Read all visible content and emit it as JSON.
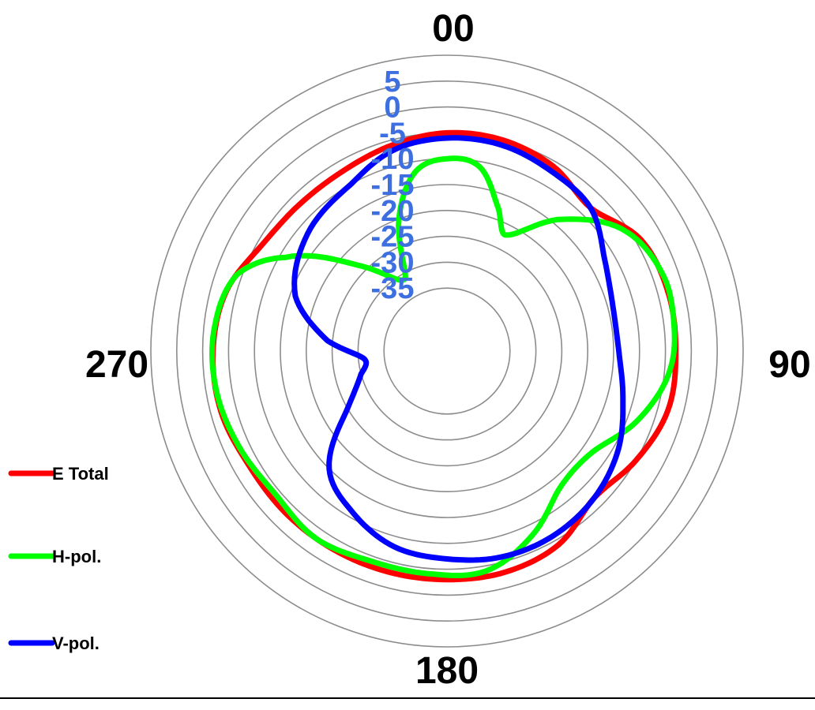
{
  "chart_data": {
    "type": "polar-line",
    "angle_labels": [
      {
        "deg": 0,
        "text": "00"
      },
      {
        "deg": 90,
        "text": "90"
      },
      {
        "deg": 180,
        "text": "180"
      },
      {
        "deg": 270,
        "text": "270"
      }
    ],
    "r_ticks": [
      "5",
      "0",
      "-5",
      "-10",
      "-15",
      "-20",
      "-25",
      "-30",
      "-35"
    ],
    "r_range": [
      -40,
      10
    ],
    "ring_values": [
      -35,
      -30,
      -25,
      -20,
      -15,
      -10,
      -5,
      0,
      5,
      10
    ],
    "tick_color": "#3d6fe0",
    "grid": true,
    "legend_position": "left",
    "series": [
      {
        "name": "E Total",
        "color": "#ff0000",
        "points": [
          [
            0,
            -5
          ],
          [
            15,
            -5
          ],
          [
            30,
            -6
          ],
          [
            45,
            -8
          ],
          [
            60,
            -4
          ],
          [
            75,
            -3
          ],
          [
            90,
            -3
          ],
          [
            105,
            -3
          ],
          [
            120,
            -5
          ],
          [
            135,
            -7
          ],
          [
            150,
            -4
          ],
          [
            165,
            -3
          ],
          [
            180,
            -3
          ],
          [
            195,
            -3
          ],
          [
            210,
            -3
          ],
          [
            225,
            -3
          ],
          [
            240,
            -3
          ],
          [
            255,
            -2
          ],
          [
            270,
            -2
          ],
          [
            285,
            -3
          ],
          [
            300,
            -6
          ],
          [
            315,
            -7
          ],
          [
            330,
            -7
          ],
          [
            345,
            -6
          ],
          [
            360,
            -5
          ]
        ]
      },
      {
        "name": "H-pol.",
        "color": "#00ff00",
        "points": [
          [
            0,
            -10
          ],
          [
            10,
            -11
          ],
          [
            20,
            -18
          ],
          [
            27,
            -22
          ],
          [
            40,
            -14
          ],
          [
            55,
            -6
          ],
          [
            70,
            -3
          ],
          [
            82,
            -3
          ],
          [
            95,
            -4
          ],
          [
            110,
            -8
          ],
          [
            125,
            -13
          ],
          [
            140,
            -13
          ],
          [
            155,
            -8
          ],
          [
            170,
            -4
          ],
          [
            185,
            -4
          ],
          [
            200,
            -4
          ],
          [
            215,
            -3
          ],
          [
            230,
            -4
          ],
          [
            245,
            -3
          ],
          [
            260,
            -2
          ],
          [
            275,
            -2
          ],
          [
            290,
            -4
          ],
          [
            300,
            -11
          ],
          [
            315,
            -24
          ],
          [
            330,
            -31
          ],
          [
            340,
            -20
          ],
          [
            350,
            -12
          ],
          [
            360,
            -10
          ]
        ]
      },
      {
        "name": "V-pol.",
        "color": "#0000ff",
        "points": [
          [
            0,
            -6
          ],
          [
            15,
            -6
          ],
          [
            30,
            -7
          ],
          [
            45,
            -8
          ],
          [
            60,
            -12
          ],
          [
            75,
            -14
          ],
          [
            90,
            -14
          ],
          [
            105,
            -12
          ],
          [
            120,
            -9
          ],
          [
            135,
            -7
          ],
          [
            150,
            -6
          ],
          [
            165,
            -6
          ],
          [
            180,
            -7
          ],
          [
            195,
            -8
          ],
          [
            210,
            -11
          ],
          [
            225,
            -15
          ],
          [
            240,
            -25
          ],
          [
            255,
            -30
          ],
          [
            265,
            -31
          ],
          [
            275,
            -24
          ],
          [
            290,
            -16
          ],
          [
            310,
            -12
          ],
          [
            330,
            -10
          ],
          [
            345,
            -7
          ],
          [
            360,
            -6
          ]
        ]
      }
    ]
  }
}
